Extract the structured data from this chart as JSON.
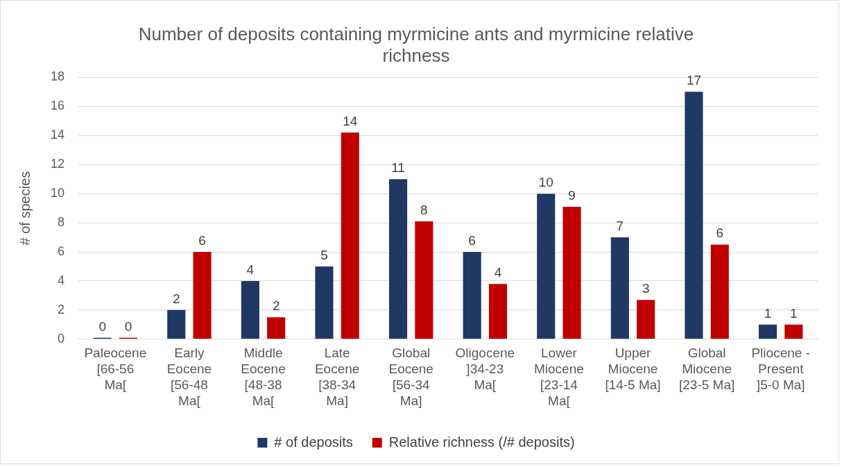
{
  "chart_data": {
    "type": "bar",
    "title": "Number of deposits containing myrmicine ants and myrmicine relative richness",
    "ylabel": "# of species",
    "categories": [
      "Paleocene\n[66-56\nMa[",
      "Early\nEocene\n[56-48\nMa[",
      "Middle\nEocene\n[48-38\nMa[",
      "Late\nEocene\n[38-34\nMa]",
      "Global\nEocene\n[56-34\nMa]",
      "Oligocene\n]34-23\nMa[",
      "Lower\nMiocene\n[23-14\nMa[",
      "Upper\nMiocene\n[14-5 Ma]",
      "Global\nMiocene\n[23-5 Ma]",
      "Pliocene -\nPresent\n]5-0 Ma]"
    ],
    "series": [
      {
        "name": "# of deposits",
        "color": "#203864",
        "values": [
          0,
          2,
          4,
          5,
          11,
          6,
          10,
          7,
          17,
          1
        ],
        "value_labels": [
          "0",
          "2",
          "4",
          "5",
          "11",
          "6",
          "10",
          "7",
          "17",
          "1"
        ]
      },
      {
        "name": "Relative richness (/# deposits)",
        "color": "#c00000",
        "values": [
          0,
          6,
          1.5,
          14.2,
          8.1,
          3.8,
          9.1,
          2.7,
          6.5,
          1
        ],
        "value_labels": [
          "0",
          "6",
          "2",
          "14",
          "8",
          "4",
          "9",
          "3",
          "6",
          "1"
        ]
      }
    ],
    "ylim": [
      0,
      18
    ],
    "yticks": [
      0,
      2,
      4,
      6,
      8,
      10,
      12,
      14,
      16,
      18
    ],
    "grid": "y",
    "legend": "bottom"
  }
}
